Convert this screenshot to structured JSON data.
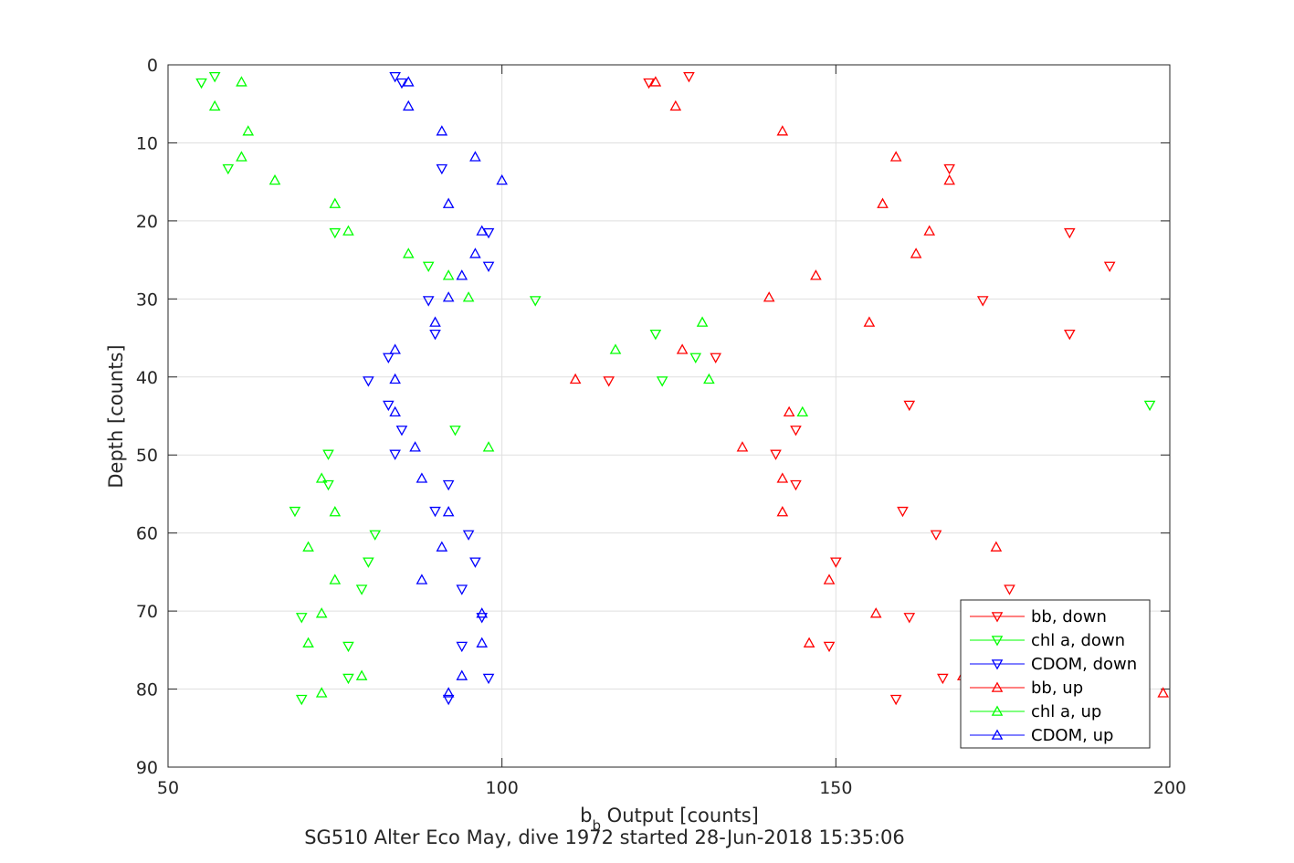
{
  "chart_data": {
    "type": "scatter",
    "title": "SG510 Alter Eco May, dive 1972 started 28-Jun-2018 15:35:06",
    "xlabel_main": "b",
    "xlabel_sub": "b",
    "xlabel_rest": " Output [counts]",
    "ylabel": "Depth [counts]",
    "xlim": [
      50,
      200
    ],
    "ylim": [
      0,
      90
    ],
    "y_reversed": true,
    "grid": true,
    "x_ticks": [
      50,
      100,
      150,
      200
    ],
    "y_ticks": [
      0,
      10,
      20,
      30,
      40,
      50,
      60,
      70,
      80,
      90
    ],
    "legend_position": "bottom-right",
    "series": [
      {
        "name": "bb, down",
        "color": "#ff0000",
        "marker": "triangle-down",
        "points": [
          [
            128,
            1.5
          ],
          [
            122,
            2.3
          ],
          [
            167,
            13.3
          ],
          [
            185,
            21.5
          ],
          [
            191,
            25.8
          ],
          [
            172,
            30.2
          ],
          [
            185,
            34.5
          ],
          [
            132,
            37.5
          ],
          [
            116,
            40.5
          ],
          [
            161,
            43.6
          ],
          [
            144,
            46.8
          ],
          [
            141,
            49.9
          ],
          [
            144,
            53.8
          ],
          [
            160,
            57.2
          ],
          [
            165,
            60.2
          ],
          [
            150,
            63.7
          ],
          [
            176,
            67.2
          ],
          [
            161,
            70.8
          ],
          [
            149,
            74.5
          ],
          [
            166,
            78.6
          ],
          [
            159,
            81.3
          ]
        ]
      },
      {
        "name": "chl a, down",
        "color": "#00ff00",
        "marker": "triangle-down",
        "points": [
          [
            57,
            1.5
          ],
          [
            55,
            2.3
          ],
          [
            59,
            13.3
          ],
          [
            75,
            21.5
          ],
          [
            89,
            25.8
          ],
          [
            105,
            30.2
          ],
          [
            123,
            34.5
          ],
          [
            129,
            37.5
          ],
          [
            124,
            40.5
          ],
          [
            197,
            43.6
          ],
          [
            93,
            46.8
          ],
          [
            74,
            49.9
          ],
          [
            74,
            53.8
          ],
          [
            69,
            57.2
          ],
          [
            81,
            60.2
          ],
          [
            80,
            63.7
          ],
          [
            79,
            67.2
          ],
          [
            70,
            70.8
          ],
          [
            77,
            74.5
          ],
          [
            77,
            78.6
          ],
          [
            70,
            81.3
          ]
        ]
      },
      {
        "name": "CDOM, down",
        "color": "#0000ff",
        "marker": "triangle-down",
        "points": [
          [
            84,
            1.5
          ],
          [
            85,
            2.3
          ],
          [
            91,
            13.3
          ],
          [
            98,
            21.5
          ],
          [
            98,
            25.8
          ],
          [
            89,
            30.2
          ],
          [
            90,
            34.5
          ],
          [
            83,
            37.5
          ],
          [
            80,
            40.5
          ],
          [
            83,
            43.6
          ],
          [
            85,
            46.8
          ],
          [
            84,
            49.9
          ],
          [
            92,
            53.8
          ],
          [
            90,
            57.2
          ],
          [
            95,
            60.2
          ],
          [
            96,
            63.7
          ],
          [
            94,
            67.2
          ],
          [
            97,
            70.8
          ],
          [
            94,
            74.5
          ],
          [
            98,
            78.6
          ],
          [
            92,
            81.3
          ]
        ]
      },
      {
        "name": "bb, up",
        "color": "#ff0000",
        "marker": "triangle-up",
        "points": [
          [
            123,
            2.2
          ],
          [
            126,
            5.3
          ],
          [
            142,
            8.5
          ],
          [
            159,
            11.8
          ],
          [
            167,
            14.8
          ],
          [
            157,
            17.8
          ],
          [
            164,
            21.3
          ],
          [
            162,
            24.2
          ],
          [
            147,
            27.0
          ],
          [
            140,
            29.8
          ],
          [
            155,
            33.0
          ],
          [
            127,
            36.5
          ],
          [
            111,
            40.3
          ],
          [
            143,
            44.5
          ],
          [
            136,
            49.0
          ],
          [
            142,
            53.0
          ],
          [
            142,
            57.3
          ],
          [
            174,
            61.8
          ],
          [
            149,
            66.0
          ],
          [
            156,
            70.3
          ],
          [
            146,
            74.1
          ],
          [
            169,
            78.3
          ],
          [
            199,
            80.5
          ]
        ]
      },
      {
        "name": "chl a, up",
        "color": "#00ff00",
        "marker": "triangle-up",
        "points": [
          [
            61,
            2.2
          ],
          [
            57,
            5.3
          ],
          [
            62,
            8.5
          ],
          [
            61,
            11.8
          ],
          [
            66,
            14.8
          ],
          [
            75,
            17.8
          ],
          [
            77,
            21.3
          ],
          [
            86,
            24.2
          ],
          [
            92,
            27.0
          ],
          [
            95,
            29.8
          ],
          [
            130,
            33.0
          ],
          [
            117,
            36.5
          ],
          [
            131,
            40.3
          ],
          [
            145,
            44.5
          ],
          [
            98,
            49.0
          ],
          [
            73,
            53.0
          ],
          [
            75,
            57.3
          ],
          [
            71,
            61.8
          ],
          [
            75,
            66.0
          ],
          [
            73,
            70.3
          ],
          [
            71,
            74.1
          ],
          [
            79,
            78.3
          ],
          [
            73,
            80.5
          ]
        ]
      },
      {
        "name": "CDOM, up",
        "color": "#0000ff",
        "marker": "triangle-up",
        "points": [
          [
            86,
            2.2
          ],
          [
            86,
            5.3
          ],
          [
            91,
            8.5
          ],
          [
            96,
            11.8
          ],
          [
            100,
            14.8
          ],
          [
            92,
            17.8
          ],
          [
            97,
            21.3
          ],
          [
            96,
            24.2
          ],
          [
            94,
            27.0
          ],
          [
            92,
            29.8
          ],
          [
            90,
            33.0
          ],
          [
            84,
            36.5
          ],
          [
            84,
            40.3
          ],
          [
            84,
            44.5
          ],
          [
            87,
            49.0
          ],
          [
            88,
            53.0
          ],
          [
            92,
            57.3
          ],
          [
            91,
            61.8
          ],
          [
            88,
            66.0
          ],
          [
            97,
            70.3
          ],
          [
            97,
            74.1
          ],
          [
            94,
            78.3
          ],
          [
            92,
            80.5
          ]
        ]
      }
    ]
  }
}
